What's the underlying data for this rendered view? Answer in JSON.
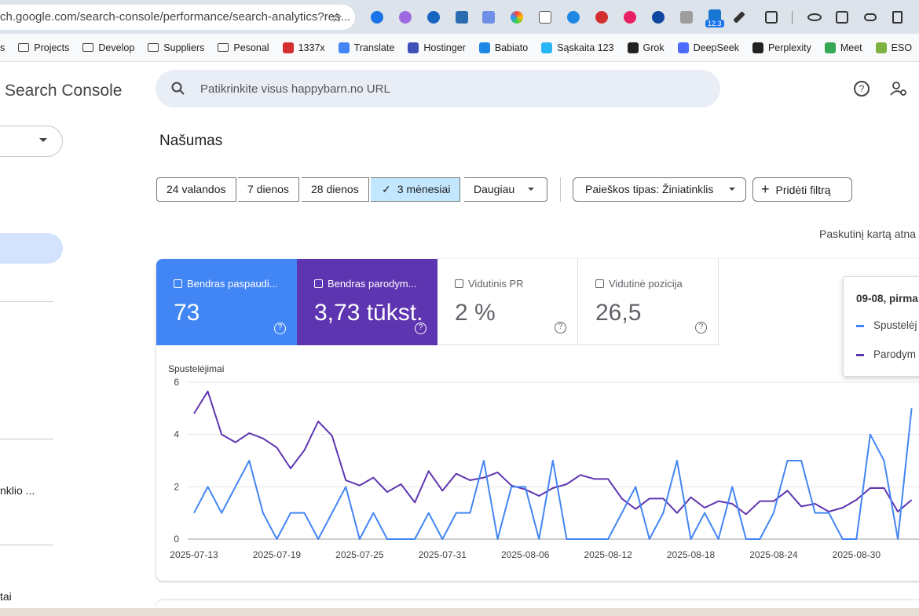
{
  "browser": {
    "url": "ch.google.com/search-console/performance/search-analytics?res...",
    "badge": "12.3",
    "bookmarks": [
      "s",
      "Projects",
      "Develop",
      "Suppliers",
      "Pesonal",
      "1337x",
      "Translate",
      "Hostinger",
      "Babiato",
      "Sąskaita 123",
      "Grok",
      "DeepSeek",
      "Perplexity",
      "Meet",
      "ESO"
    ]
  },
  "header": {
    "product": "Search Console",
    "search_placeholder": "Patikrinkite visus happybarn.no URL"
  },
  "page": {
    "title": "Našumas",
    "date_filters": [
      "24 valandos",
      "7 dienos",
      "28 dienos",
      "3 mėnesiai",
      "Daugiau"
    ],
    "search_type": "Paieškos tipas: Žiniatinklis",
    "add_filter": "Pridėti filtrą",
    "last_updated": "Paskutinį kartą atna"
  },
  "cards": [
    {
      "label": "Bendras paspaudi...",
      "value": "73"
    },
    {
      "label": "Bendras parodym...",
      "value": "3,73 tūkst."
    },
    {
      "label": "Vidutinis PR",
      "value": "2 %"
    },
    {
      "label": "Vidutinė pozicija",
      "value": "26,5"
    }
  ],
  "tooltip": {
    "date": "09-08, pirma",
    "items": [
      "Spustelėj",
      "Parodym"
    ]
  },
  "sidebar": {
    "items": [
      "nklio ...",
      "tai"
    ]
  },
  "chart_data": {
    "type": "line",
    "y_label": "Spustelėjimai",
    "categories": [
      "2025-07-13",
      null,
      null,
      null,
      null,
      null,
      "2025-07-19",
      null,
      null,
      null,
      null,
      null,
      "2025-07-25",
      null,
      null,
      null,
      null,
      null,
      "2025-07-31",
      null,
      null,
      null,
      null,
      null,
      "2025-08-06",
      null,
      null,
      null,
      null,
      null,
      "2025-08-12",
      null,
      null,
      null,
      null,
      null,
      "2025-08-18",
      null,
      null,
      null,
      null,
      null,
      "2025-08-24",
      null,
      null,
      null,
      null,
      null,
      "2025-08-30",
      null,
      null,
      null,
      null
    ],
    "series": [
      {
        "color": "#4285f4",
        "values": [
          1,
          2,
          1,
          2,
          3,
          1,
          0,
          1,
          1,
          0,
          1,
          2,
          0,
          1,
          0,
          0,
          0,
          1,
          0,
          1,
          1,
          3,
          0,
          2,
          2,
          0,
          3,
          0,
          0,
          0,
          0,
          1,
          2,
          0,
          1,
          3,
          0,
          1,
          0,
          2,
          0,
          0,
          1,
          3,
          3,
          1,
          1,
          0,
          0,
          4,
          3,
          0,
          5
        ]
      },
      {
        "color": "#5e35b1",
        "values": [
          4.8,
          5.65,
          4.0,
          3.7,
          4.05,
          3.85,
          3.5,
          2.7,
          3.4,
          4.5,
          3.95,
          2.25,
          2.05,
          2.35,
          1.8,
          2.1,
          1.4,
          2.6,
          1.85,
          2.5,
          2.25,
          2.35,
          2.55,
          2.05,
          1.9,
          1.65,
          1.95,
          2.1,
          2.45,
          2.3,
          2.3,
          1.55,
          1.15,
          1.55,
          1.55,
          1.0,
          1.6,
          1.2,
          1.45,
          1.35,
          0.95,
          1.45,
          1.45,
          1.85,
          1.25,
          1.35,
          1.05,
          1.2,
          1.5,
          1.95,
          1.95,
          1.05,
          1.5
        ]
      }
    ],
    "ylim": [
      0,
      6
    ],
    "yticks": [
      0,
      2,
      4,
      6
    ],
    "grid": true
  }
}
